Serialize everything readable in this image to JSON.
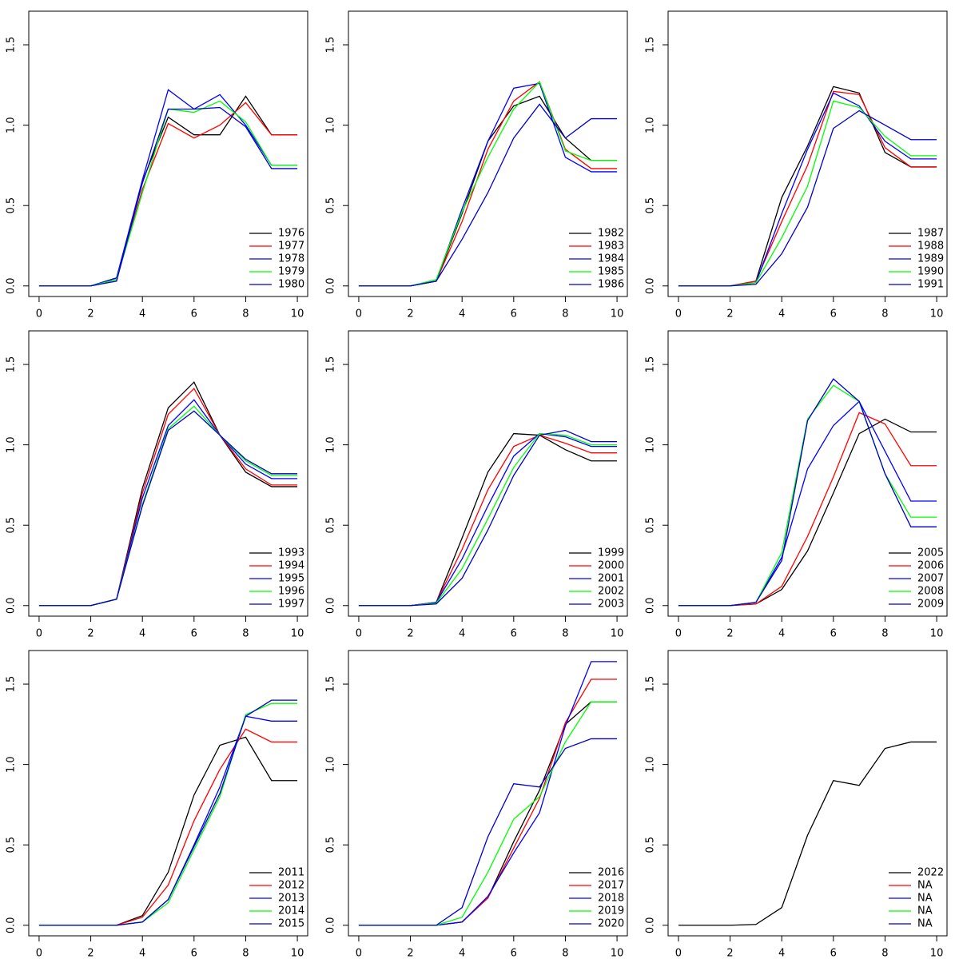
{
  "chart_data": [
    {
      "type": "line",
      "x": [
        0,
        1,
        2,
        3,
        4,
        5,
        6,
        7,
        8,
        9,
        10
      ],
      "xlim": [
        -0.4,
        10.4
      ],
      "ylim": [
        -0.0657,
        1.709
      ],
      "xticks": [
        0,
        2,
        4,
        6,
        8,
        10
      ],
      "yticks": [
        {
          "value": 0,
          "label": "0.0"
        },
        0.5,
        {
          "value": 1,
          "label": "1.0"
        },
        1.5
      ],
      "legend": "bottomright",
      "series": [
        {
          "name": "1976",
          "color": "#000000",
          "values": [
            0,
            0,
            0,
            0.05,
            0.65,
            1.05,
            0.94,
            0.94,
            1.18,
            0.94,
            0.94
          ]
        },
        {
          "name": "1977",
          "color": "#ff0000",
          "values": [
            0,
            0,
            0,
            0.04,
            0.6,
            1.01,
            0.92,
            1.0,
            1.14,
            0.94,
            0.94
          ]
        },
        {
          "name": "1978",
          "color": "#0000ff",
          "values": [
            0,
            0,
            0,
            0.05,
            0.66,
            1.22,
            1.1,
            1.19,
            1.0,
            0.75,
            0.75
          ]
        },
        {
          "name": "1979",
          "color": "#00ff00",
          "values": [
            0,
            0,
            0,
            0.04,
            0.58,
            1.1,
            1.08,
            1.15,
            1.02,
            0.75,
            0.75
          ]
        },
        {
          "name": "1980",
          "color": "#0000cc",
          "values": [
            0,
            0,
            0,
            0.03,
            0.64,
            1.1,
            1.1,
            1.11,
            0.99,
            0.73,
            0.73
          ]
        }
      ]
    },
    {
      "type": "line",
      "x": [
        0,
        1,
        2,
        3,
        4,
        5,
        6,
        7,
        8,
        9,
        10
      ],
      "xlim": [
        -0.4,
        10.4
      ],
      "ylim": [
        -0.0657,
        1.709
      ],
      "xticks": [
        0,
        2,
        4,
        6,
        8,
        10
      ],
      "yticks": [
        {
          "value": 0,
          "label": "0.0"
        },
        0.5,
        {
          "value": 1,
          "label": "1.0"
        },
        1.5
      ],
      "legend": "bottomright",
      "series": [
        {
          "name": "1982",
          "color": "#000000",
          "values": [
            0,
            0,
            0,
            0.03,
            0.45,
            0.9,
            1.12,
            1.18,
            0.92,
            0.78,
            0.78
          ]
        },
        {
          "name": "1983",
          "color": "#ff0000",
          "values": [
            0,
            0,
            0,
            0.03,
            0.4,
            0.85,
            1.15,
            1.27,
            0.85,
            0.73,
            0.73
          ]
        },
        {
          "name": "1984",
          "color": "#0000ff",
          "values": [
            0,
            0,
            0,
            0.03,
            0.48,
            0.9,
            1.23,
            1.26,
            0.8,
            0.71,
            0.71
          ]
        },
        {
          "name": "1985",
          "color": "#00ff00",
          "values": [
            0,
            0,
            0,
            0.04,
            0.46,
            0.8,
            1.1,
            1.27,
            0.84,
            0.78,
            0.78
          ]
        },
        {
          "name": "1986",
          "color": "#0000cc",
          "values": [
            0,
            0,
            0,
            0.03,
            0.29,
            0.58,
            0.92,
            1.13,
            0.92,
            1.04,
            1.04
          ]
        }
      ]
    },
    {
      "type": "line",
      "x": [
        0,
        1,
        2,
        3,
        4,
        5,
        6,
        7,
        8,
        9,
        10
      ],
      "xlim": [
        -0.4,
        10.4
      ],
      "ylim": [
        -0.0657,
        1.709
      ],
      "xticks": [
        0,
        2,
        4,
        6,
        8,
        10
      ],
      "yticks": [
        {
          "value": 0,
          "label": "0.0"
        },
        0.5,
        {
          "value": 1,
          "label": "1.0"
        },
        1.5
      ],
      "legend": "bottomright",
      "series": [
        {
          "name": "1987",
          "color": "#000000",
          "values": [
            0,
            0,
            0,
            0.03,
            0.55,
            0.87,
            1.24,
            1.2,
            0.83,
            0.74,
            0.74
          ]
        },
        {
          "name": "1988",
          "color": "#ff0000",
          "values": [
            0,
            0,
            0,
            0.03,
            0.4,
            0.75,
            1.21,
            1.19,
            0.86,
            0.74,
            0.74
          ]
        },
        {
          "name": "1989",
          "color": "#0000ff",
          "values": [
            0,
            0,
            0,
            0.02,
            0.45,
            0.85,
            1.2,
            1.12,
            0.9,
            0.79,
            0.79
          ]
        },
        {
          "name": "1990",
          "color": "#00ff00",
          "values": [
            0,
            0,
            0,
            0.02,
            0.3,
            0.62,
            1.15,
            1.11,
            0.93,
            0.81,
            0.81
          ]
        },
        {
          "name": "1991",
          "color": "#0000cc",
          "values": [
            0,
            0,
            0,
            0.01,
            0.2,
            0.49,
            0.98,
            1.09,
            1.0,
            0.91,
            0.91
          ]
        }
      ]
    },
    {
      "type": "line",
      "x": [
        0,
        1,
        2,
        3,
        4,
        5,
        6,
        7,
        8,
        9,
        10
      ],
      "xlim": [
        -0.4,
        10.4
      ],
      "ylim": [
        -0.0657,
        1.709
      ],
      "xticks": [
        0,
        2,
        4,
        6,
        8,
        10
      ],
      "yticks": [
        {
          "value": 0,
          "label": "0.0"
        },
        0.5,
        {
          "value": 1,
          "label": "1.0"
        },
        1.5
      ],
      "legend": "bottomright",
      "series": [
        {
          "name": "1993",
          "color": "#000000",
          "values": [
            0,
            0,
            0,
            0.04,
            0.73,
            1.23,
            1.39,
            1.06,
            0.83,
            0.74,
            0.74
          ]
        },
        {
          "name": "1994",
          "color": "#ff0000",
          "values": [
            0,
            0,
            0,
            0.04,
            0.7,
            1.19,
            1.35,
            1.06,
            0.85,
            0.75,
            0.75
          ]
        },
        {
          "name": "1995",
          "color": "#0000ff",
          "values": [
            0,
            0,
            0,
            0.04,
            0.67,
            1.12,
            1.28,
            1.06,
            0.88,
            0.79,
            0.79
          ]
        },
        {
          "name": "1996",
          "color": "#00ff00",
          "values": [
            0,
            0,
            0,
            0.04,
            0.63,
            1.1,
            1.24,
            1.06,
            0.9,
            0.81,
            0.81
          ]
        },
        {
          "name": "1997",
          "color": "#0000cc",
          "values": [
            0,
            0,
            0,
            0.04,
            0.62,
            1.09,
            1.21,
            1.06,
            0.91,
            0.82,
            0.82
          ]
        }
      ]
    },
    {
      "type": "line",
      "x": [
        0,
        1,
        2,
        3,
        4,
        5,
        6,
        7,
        8,
        9,
        10
      ],
      "xlim": [
        -0.4,
        10.4
      ],
      "ylim": [
        -0.0657,
        1.709
      ],
      "xticks": [
        0,
        2,
        4,
        6,
        8,
        10
      ],
      "yticks": [
        {
          "value": 0,
          "label": "0.0"
        },
        0.5,
        {
          "value": 1,
          "label": "1.0"
        },
        1.5
      ],
      "legend": "bottomright",
      "series": [
        {
          "name": "1999",
          "color": "#000000",
          "values": [
            0,
            0,
            0,
            0.02,
            0.42,
            0.83,
            1.07,
            1.06,
            0.97,
            0.9,
            0.9
          ]
        },
        {
          "name": "2000",
          "color": "#ff0000",
          "values": [
            0,
            0,
            0,
            0.02,
            0.35,
            0.72,
            0.99,
            1.06,
            1.01,
            0.95,
            0.95
          ]
        },
        {
          "name": "2001",
          "color": "#0000ff",
          "values": [
            0,
            0,
            0,
            0.02,
            0.29,
            0.62,
            0.93,
            1.07,
            1.05,
            0.99,
            0.99
          ]
        },
        {
          "name": "2002",
          "color": "#00ff00",
          "values": [
            0,
            0,
            0,
            0.015,
            0.23,
            0.54,
            0.86,
            1.07,
            1.06,
            1.0,
            1.0
          ]
        },
        {
          "name": "2003",
          "color": "#0000cc",
          "values": [
            0,
            0,
            0,
            0.01,
            0.17,
            0.47,
            0.81,
            1.06,
            1.09,
            1.02,
            1.02
          ]
        }
      ]
    },
    {
      "type": "line",
      "x": [
        0,
        1,
        2,
        3,
        4,
        5,
        6,
        7,
        8,
        9,
        10
      ],
      "xlim": [
        -0.4,
        10.4
      ],
      "ylim": [
        -0.0657,
        1.709
      ],
      "xticks": [
        0,
        2,
        4,
        6,
        8,
        10
      ],
      "yticks": [
        {
          "value": 0,
          "label": "0.0"
        },
        0.5,
        {
          "value": 1,
          "label": "1.0"
        },
        1.5
      ],
      "legend": "bottomright",
      "series": [
        {
          "name": "2005",
          "color": "#000000",
          "values": [
            0,
            0,
            0,
            0.01,
            0.1,
            0.34,
            0.7,
            1.07,
            1.16,
            1.08,
            1.08
          ]
        },
        {
          "name": "2006",
          "color": "#ff0000",
          "values": [
            0,
            0,
            0,
            0.01,
            0.12,
            0.43,
            0.8,
            1.2,
            1.13,
            0.87,
            0.87
          ]
        },
        {
          "name": "2007",
          "color": "#0000ff",
          "values": [
            0,
            0,
            0,
            0.02,
            0.3,
            0.85,
            1.12,
            1.27,
            0.96,
            0.65,
            0.65
          ]
        },
        {
          "name": "2008",
          "color": "#00ff00",
          "values": [
            0,
            0,
            0,
            0.02,
            0.33,
            1.16,
            1.37,
            1.27,
            0.82,
            0.55,
            0.55
          ]
        },
        {
          "name": "2009",
          "color": "#0000cc",
          "values": [
            0,
            0,
            0,
            0.02,
            0.28,
            1.15,
            1.41,
            1.27,
            0.82,
            0.49,
            0.49
          ]
        }
      ]
    },
    {
      "type": "line",
      "x": [
        0,
        1,
        2,
        3,
        4,
        5,
        6,
        7,
        8,
        9,
        10
      ],
      "xlim": [
        -0.4,
        10.4
      ],
      "ylim": [
        -0.0657,
        1.709
      ],
      "xticks": [
        0,
        2,
        4,
        6,
        8,
        10
      ],
      "yticks": [
        {
          "value": 0,
          "label": "0.0"
        },
        0.5,
        {
          "value": 1,
          "label": "1.0"
        },
        1.5
      ],
      "legend": "bottomright",
      "series": [
        {
          "name": "2011",
          "color": "#000000",
          "values": [
            0,
            0,
            0,
            0,
            0.06,
            0.33,
            0.81,
            1.12,
            1.17,
            0.9,
            0.9
          ]
        },
        {
          "name": "2012",
          "color": "#ff0000",
          "values": [
            0,
            0,
            0,
            0,
            0.05,
            0.25,
            0.65,
            0.97,
            1.22,
            1.14,
            1.14
          ]
        },
        {
          "name": "2013",
          "color": "#0000ff",
          "values": [
            0,
            0,
            0,
            0,
            0.02,
            0.16,
            0.5,
            0.86,
            1.3,
            1.27,
            1.27
          ]
        },
        {
          "name": "2014",
          "color": "#00ff00",
          "values": [
            0,
            0,
            0,
            0,
            0.02,
            0.14,
            0.47,
            0.8,
            1.31,
            1.38,
            1.38
          ]
        },
        {
          "name": "2015",
          "color": "#0000cc",
          "values": [
            0,
            0,
            0,
            0,
            0.02,
            0.16,
            0.49,
            0.82,
            1.3,
            1.4,
            1.4
          ]
        }
      ]
    },
    {
      "type": "line",
      "x": [
        0,
        1,
        2,
        3,
        4,
        5,
        6,
        7,
        8,
        9,
        10
      ],
      "xlim": [
        -0.4,
        10.4
      ],
      "ylim": [
        -0.0657,
        1.709
      ],
      "xticks": [
        0,
        2,
        4,
        6,
        8,
        10
      ],
      "yticks": [
        {
          "value": 0,
          "label": "0.0"
        },
        0.5,
        {
          "value": 1,
          "label": "1.0"
        },
        1.5
      ],
      "legend": "bottomright",
      "series": [
        {
          "name": "2016",
          "color": "#000000",
          "values": [
            0,
            0,
            0,
            0,
            0.02,
            0.17,
            0.52,
            0.84,
            1.25,
            1.39,
            1.39
          ]
        },
        {
          "name": "2017",
          "color": "#ff0000",
          "values": [
            0,
            0,
            0,
            0,
            0.02,
            0.17,
            0.48,
            0.79,
            1.26,
            1.53,
            1.53
          ]
        },
        {
          "name": "2018",
          "color": "#0000ff",
          "values": [
            0,
            0,
            0,
            0,
            0.02,
            0.18,
            0.45,
            0.7,
            1.24,
            1.64,
            1.64
          ]
        },
        {
          "name": "2019",
          "color": "#00ff00",
          "values": [
            0,
            0,
            0,
            0,
            0.05,
            0.33,
            0.66,
            0.8,
            1.14,
            1.39,
            1.39
          ]
        },
        {
          "name": "2020",
          "color": "#0000cc",
          "values": [
            0,
            0,
            0,
            0,
            0.11,
            0.55,
            0.88,
            0.86,
            1.1,
            1.16,
            1.16
          ]
        }
      ]
    },
    {
      "type": "line",
      "x": [
        0,
        1,
        2,
        3,
        4,
        5,
        6,
        7,
        8,
        9,
        10
      ],
      "xlim": [
        -0.4,
        10.4
      ],
      "ylim": [
        -0.0657,
        1.709
      ],
      "xticks": [
        0,
        2,
        4,
        6,
        8,
        10
      ],
      "yticks": [
        {
          "value": 0,
          "label": "0.0"
        },
        0.5,
        {
          "value": 1,
          "label": "1.0"
        },
        1.5
      ],
      "legend": "bottomright",
      "series": [
        {
          "name": "2022",
          "color": "#000000",
          "values": [
            0,
            0,
            0,
            0.005,
            0.11,
            0.56,
            0.9,
            0.87,
            1.1,
            1.14,
            1.14
          ]
        },
        {
          "name": "NA",
          "color": "#ff0000",
          "values": [
            null,
            null,
            null,
            null,
            null,
            null,
            null,
            null,
            null,
            null,
            null
          ]
        },
        {
          "name": "NA",
          "color": "#0000ff",
          "values": [
            null,
            null,
            null,
            null,
            null,
            null,
            null,
            null,
            null,
            null,
            null
          ]
        },
        {
          "name": "NA",
          "color": "#00ff00",
          "values": [
            null,
            null,
            null,
            null,
            null,
            null,
            null,
            null,
            null,
            null,
            null
          ]
        },
        {
          "name": "NA",
          "color": "#0000cc",
          "values": [
            null,
            null,
            null,
            null,
            null,
            null,
            null,
            null,
            null,
            null,
            null
          ]
        }
      ]
    }
  ]
}
